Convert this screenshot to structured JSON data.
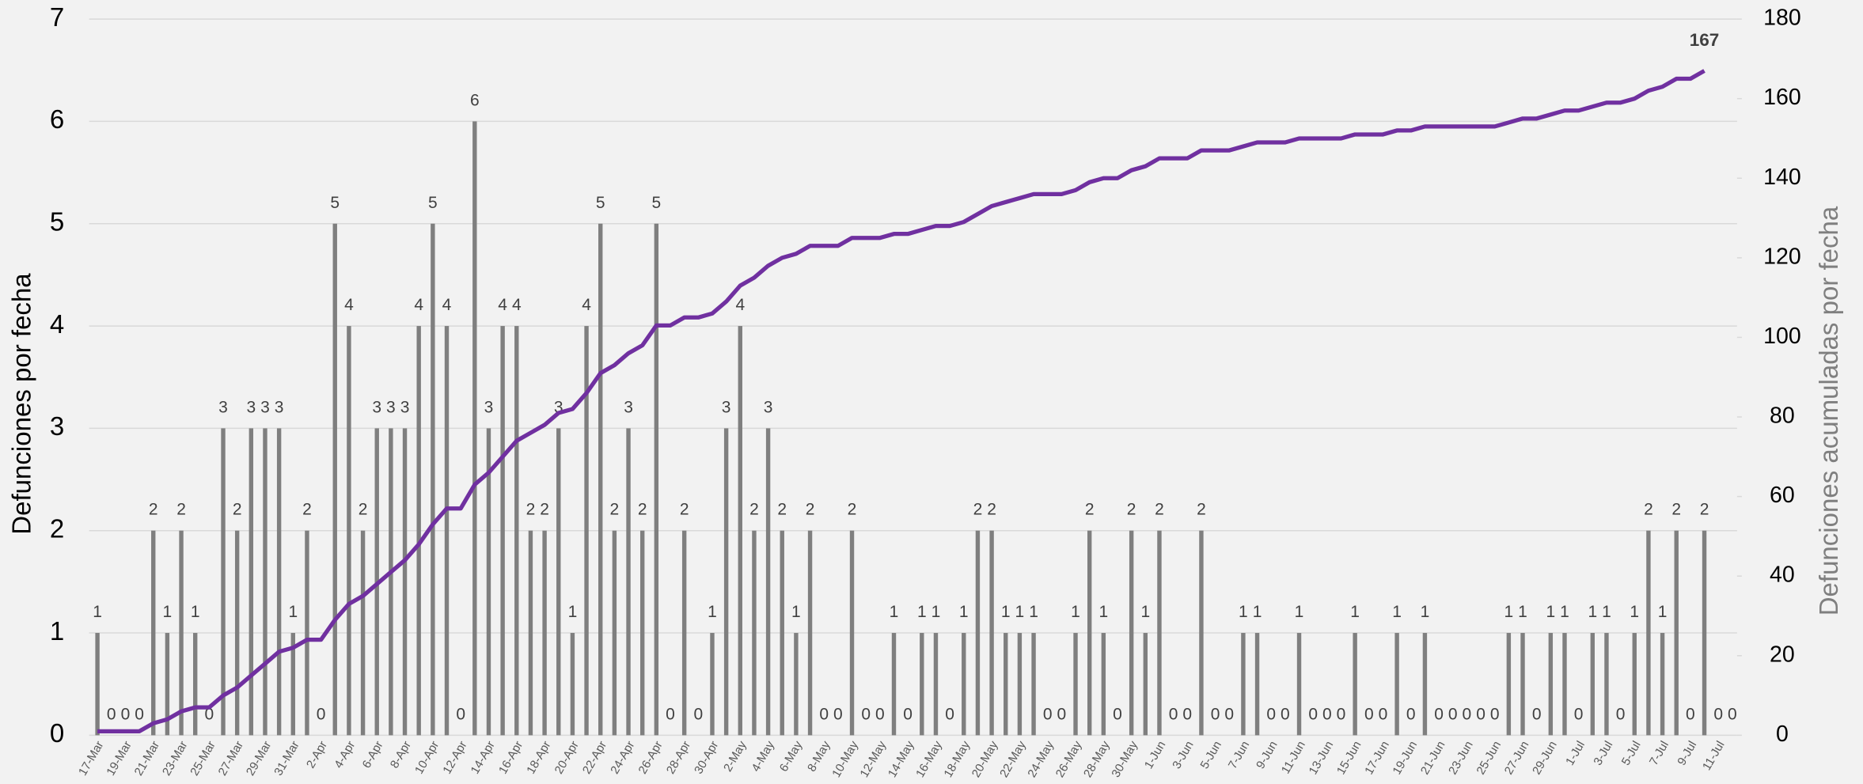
{
  "chart_data": {
    "type": "bar",
    "categories": [
      "17-Mar",
      null,
      "19-Mar",
      null,
      "21-Mar",
      null,
      "23-Mar",
      null,
      "25-Mar",
      null,
      "27-Mar",
      null,
      "29-Mar",
      null,
      "31-Mar",
      null,
      "2-Apr",
      null,
      "4-Apr",
      null,
      "6-Apr",
      null,
      "8-Apr",
      null,
      "10-Apr",
      null,
      "12-Apr",
      null,
      "14-Apr",
      null,
      "16-Apr",
      null,
      "18-Apr",
      null,
      "20-Apr",
      null,
      "22-Apr",
      null,
      "24-Apr",
      null,
      "26-Apr",
      null,
      "28-Apr",
      null,
      "30-Apr",
      null,
      "2-May",
      null,
      "4-May",
      null,
      "6-May",
      null,
      "8-May",
      null,
      "10-May",
      null,
      "12-May",
      null,
      "14-May",
      null,
      "16-May",
      null,
      "18-May",
      null,
      "20-May",
      null,
      "22-May",
      null,
      "24-May",
      null,
      "26-May",
      null,
      "28-May",
      null,
      "30-May",
      null,
      "1-Jun",
      null,
      "3-Jun",
      null,
      "5-Jun",
      null,
      "7-Jun",
      null,
      "9-Jun",
      null,
      "11-Jun",
      null,
      "13-Jun",
      null,
      "15-Jun",
      null,
      "17-Jun",
      null,
      "19-Jun",
      null,
      "21-Jun",
      null,
      "23-Jun",
      null,
      "25-Jun",
      null,
      "27-Jun",
      null,
      "29-Jun",
      null,
      "1-Jul",
      null,
      "3-Jul",
      null,
      "5-Jul",
      null,
      "7-Jul",
      null,
      "9-Jul",
      null,
      "11-Jul",
      null
    ],
    "series": [
      {
        "name": "Defunciones por fecha",
        "color": "#7f7f7f",
        "axis": "y",
        "values": [
          1,
          0,
          0,
          0,
          2,
          1,
          2,
          1,
          0,
          3,
          2,
          3,
          3,
          3,
          1,
          2,
          0,
          5,
          4,
          2,
          3,
          3,
          3,
          4,
          5,
          4,
          0,
          6,
          3,
          4,
          4,
          2,
          2,
          3,
          1,
          4,
          5,
          2,
          3,
          2,
          5,
          0,
          2,
          0,
          1,
          3,
          4,
          2,
          3,
          2,
          1,
          2,
          0,
          0,
          2,
          0,
          0,
          1,
          0,
          1,
          1,
          0,
          1,
          2,
          2,
          1,
          1,
          1,
          0,
          0,
          1,
          2,
          1,
          0,
          2,
          1,
          2,
          0,
          0,
          2,
          0,
          0,
          1,
          1,
          0,
          0,
          1,
          0,
          0,
          0,
          1,
          0,
          0,
          1,
          0,
          1,
          0,
          0,
          0,
          0,
          0,
          1,
          1,
          0,
          1,
          1,
          0,
          1,
          1,
          0,
          1,
          2,
          1,
          2,
          0,
          2,
          0,
          0
        ]
      },
      {
        "name": "Defunciones acumuladas por fecha",
        "color": "#7030a0",
        "axis": "y2",
        "values": [
          1,
          1,
          1,
          1,
          3,
          4,
          6,
          7,
          7,
          10,
          12,
          15,
          18,
          21,
          22,
          24,
          24,
          29,
          33,
          35,
          38,
          41,
          44,
          48,
          53,
          57,
          57,
          63,
          66,
          70,
          74,
          76,
          78,
          81,
          82,
          86,
          91,
          93,
          96,
          98,
          103,
          103,
          105,
          105,
          106,
          109,
          113,
          115,
          118,
          120,
          121,
          123,
          123,
          123,
          125,
          125,
          125,
          126,
          126,
          127,
          128,
          128,
          129,
          131,
          133,
          134,
          135,
          136,
          136,
          136,
          137,
          139,
          140,
          140,
          142,
          143,
          145,
          145,
          145,
          147,
          147,
          147,
          148,
          149,
          149,
          149,
          150,
          150,
          150,
          150,
          151,
          151,
          151,
          152,
          152,
          153,
          153,
          153,
          153,
          153,
          153,
          154,
          155,
          155,
          156,
          157,
          157,
          158,
          159,
          159,
          160,
          162,
          163,
          165,
          165,
          167,
          null,
          null
        ]
      }
    ],
    "y_label": "Defunciones por fecha",
    "y2_label": "Defunciones acumuladas por fecha",
    "ylim": [
      0,
      7
    ],
    "yticks": [
      0,
      1,
      2,
      3,
      4,
      5,
      6,
      7
    ],
    "y2lim": [
      0,
      180
    ],
    "y2ticks": [
      0,
      20,
      40,
      60,
      80,
      100,
      120,
      140,
      160,
      180
    ],
    "grid": true
  }
}
